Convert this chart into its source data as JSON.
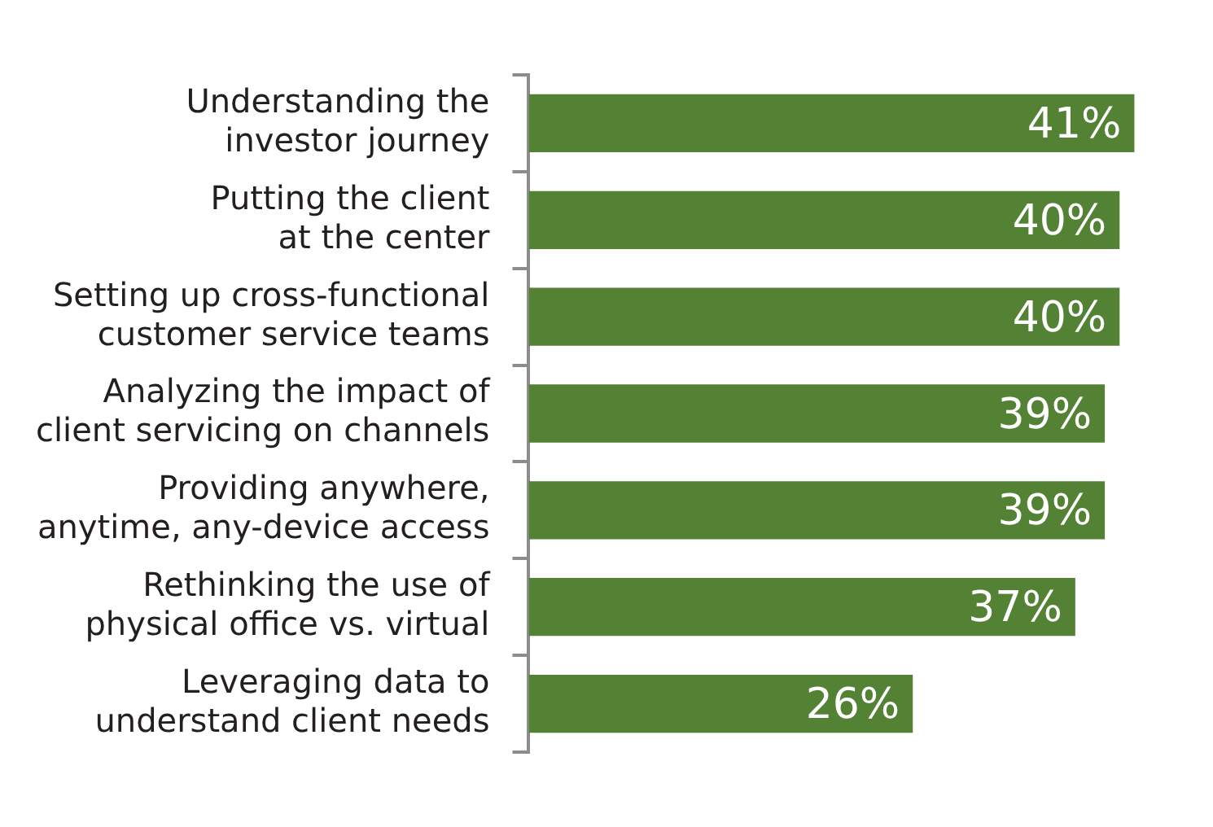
{
  "chart_data": {
    "type": "bar",
    "orientation": "horizontal",
    "categories": [
      "Understanding the investor journey",
      "Putting the client at the center",
      "Setting up cross-functional customer service teams",
      "Analyzing the impact of client servicing on channels",
      "Providing anywhere, anytime, any-device access",
      "Rethinking the use of physical office vs. virtual",
      "Leveraging data to understand client needs"
    ],
    "values": [
      41,
      40,
      40,
      39,
      39,
      37,
      26
    ],
    "value_labels": [
      "41%",
      "40%",
      "40%",
      "39%",
      "39%",
      "37%",
      "26%"
    ],
    "color": "#548235",
    "legend": false,
    "tick_labels": "y"
  }
}
